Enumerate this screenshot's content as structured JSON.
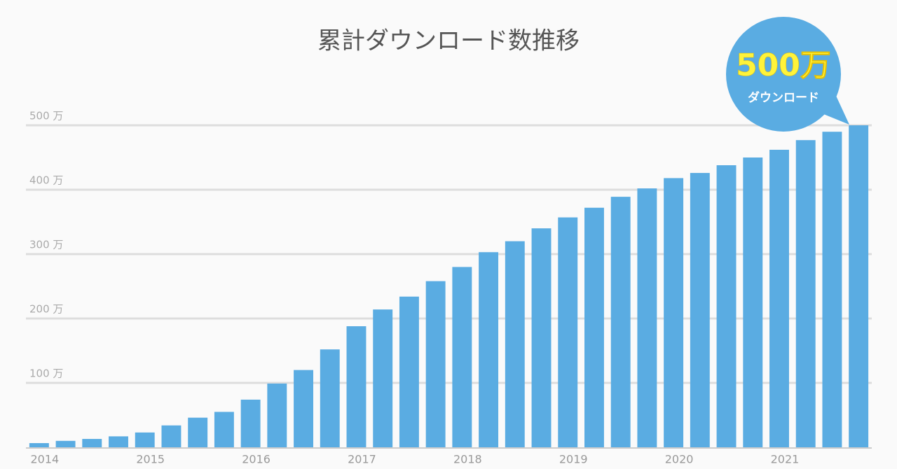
{
  "chart_data": {
    "type": "bar",
    "title": "累計ダウンロード数推移",
    "categories": [
      "2014",
      null,
      null,
      null,
      "2015",
      null,
      null,
      null,
      "2016",
      null,
      null,
      null,
      "2017",
      null,
      null,
      null,
      "2018",
      null,
      null,
      null,
      "2019",
      null,
      null,
      null,
      "2020",
      null,
      null,
      null,
      "2021",
      null,
      null,
      null
    ],
    "values": [
      6.5,
      10,
      13,
      17,
      23,
      34,
      46,
      55,
      74,
      99,
      120,
      152,
      188,
      214,
      234,
      258,
      280,
      303,
      320,
      340,
      357,
      372,
      389,
      402,
      418,
      426,
      438,
      450,
      462,
      477,
      490,
      500
    ],
    "color": "#5aace2",
    "ylim": [
      0,
      500
    ],
    "yticks": [
      {
        "value": 100,
        "label": "100 万"
      },
      {
        "value": 200,
        "label": "200 万"
      },
      {
        "value": 300,
        "label": "300 万"
      },
      {
        "value": 400,
        "label": "400 万"
      },
      {
        "value": 500,
        "label": "500 万"
      }
    ],
    "grid": true,
    "callout": {
      "headline": "500万",
      "caption": "ダウンロード"
    }
  }
}
